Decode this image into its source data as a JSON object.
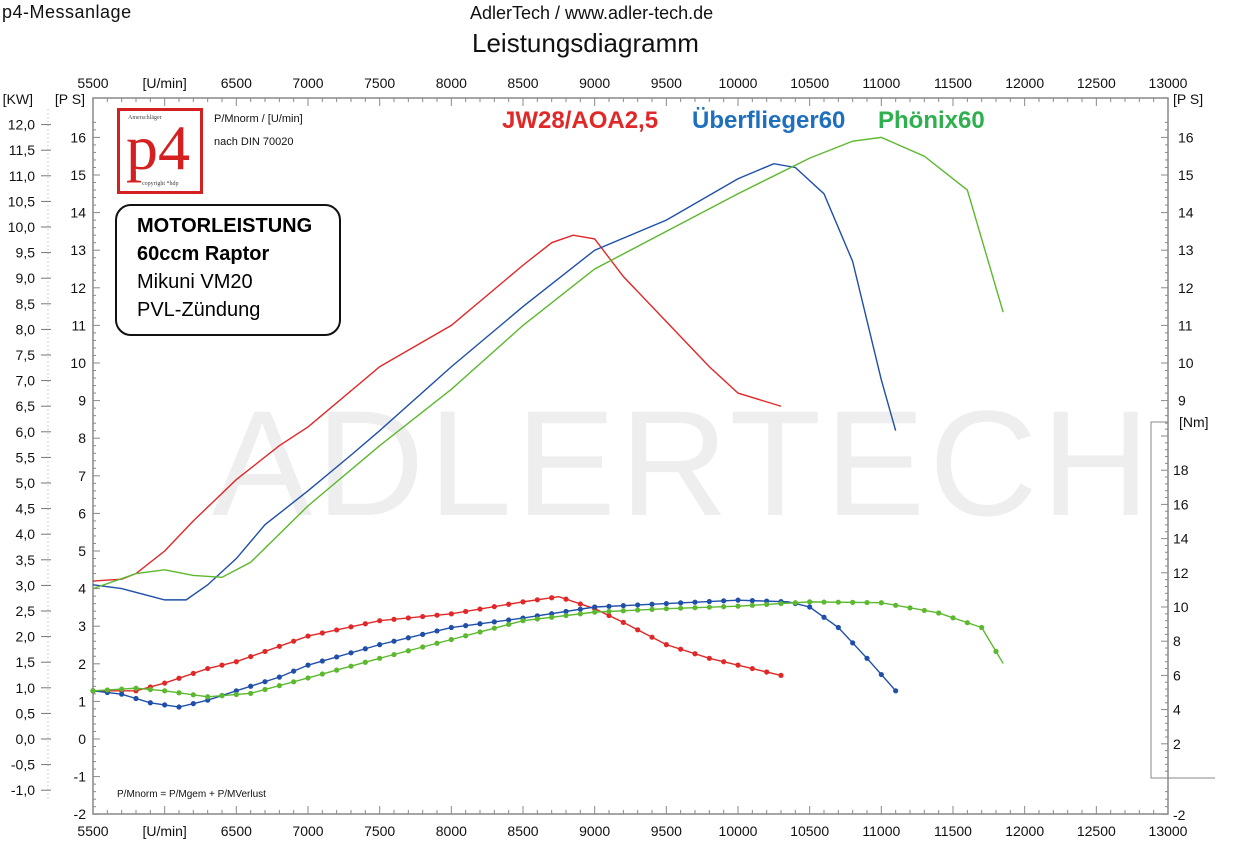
{
  "header": {
    "left": "p4-Messanlage",
    "center": "AdlerTech / www.adler-tech.de",
    "title": "Leistungsdiagramm"
  },
  "logo": {
    "text": "p4",
    "top": "Amerschläger",
    "bottom": "copyright *hdp",
    "color": "#d42020"
  },
  "norm": {
    "line1": "P/Mnorm / [U/min]",
    "line2": "nach DIN 70020"
  },
  "info_box": {
    "lines": [
      "MOTORLEISTUNG",
      "60ccm Raptor",
      "Mikuni VM20",
      "PVL-Zündung"
    ]
  },
  "footer_note": "P/Mnorm = P/Mgem + P/MVerlust",
  "watermark": "ADLERTECH",
  "chart_data": {
    "type": "line",
    "title": "Leistungsdiagramm",
    "x_unit_label": "[U/min]",
    "xlim": [
      5500,
      13000
    ],
    "x_ticks": [
      5500,
      6500,
      7000,
      7500,
      8000,
      8500,
      9000,
      9500,
      10000,
      10500,
      11000,
      11500,
      12000,
      12500,
      13000
    ],
    "axes": {
      "kw": {
        "label": "[KW]",
        "ylim": [
          -1.0,
          12.0
        ],
        "ticks": [
          "12,0",
          "11,5",
          "11,0",
          "10,5",
          "10,0",
          "9,5",
          "9,0",
          "8,5",
          "8,0",
          "7,5",
          "7,0",
          "6,5",
          "6,0",
          "5,5",
          "5,0",
          "4,5",
          "4,0",
          "3,5",
          "3,0",
          "2,5",
          "2,0",
          "1,5",
          "1,0",
          "0,5",
          "0,0",
          "-0,5",
          "-1,0"
        ]
      },
      "ps": {
        "label": "[P S]",
        "ylim": [
          -2,
          16
        ],
        "ticks": [
          16,
          15,
          14,
          13,
          12,
          11,
          10,
          9,
          8,
          7,
          6,
          5,
          4,
          3,
          2,
          1,
          0,
          -1,
          -2
        ]
      },
      "ps_right": {
        "label": "[P S]",
        "ticks": [
          16,
          15,
          14,
          13,
          12,
          11,
          10,
          9
        ]
      },
      "nm": {
        "label": "[Nm]",
        "ticks": [
          18,
          16,
          14,
          12,
          10,
          8,
          6,
          4,
          2
        ],
        "bottom_tick": "-2"
      }
    },
    "legend": [
      "JW28/AOA2,5",
      "Überflieger60",
      "Phönix60"
    ],
    "legend_placement": "top",
    "series": [
      {
        "name": "JW28/AOA2,5",
        "color": "#e02828",
        "power_ps": [
          [
            5500,
            4.2
          ],
          [
            5700,
            4.25
          ],
          [
            5800,
            4.4
          ],
          [
            6000,
            5.0
          ],
          [
            6200,
            5.8
          ],
          [
            6500,
            6.9
          ],
          [
            6800,
            7.8
          ],
          [
            7000,
            8.3
          ],
          [
            7500,
            9.9
          ],
          [
            8000,
            11.0
          ],
          [
            8500,
            12.6
          ],
          [
            8700,
            13.2
          ],
          [
            8850,
            13.4
          ],
          [
            9000,
            13.3
          ],
          [
            9200,
            12.3
          ],
          [
            9500,
            11.1
          ],
          [
            9800,
            9.9
          ],
          [
            10000,
            9.2
          ],
          [
            10300,
            8.85
          ]
        ],
        "torque_nm": [
          [
            5500,
            5.1
          ],
          [
            5800,
            5.1
          ],
          [
            6000,
            5.55
          ],
          [
            6300,
            6.4
          ],
          [
            6500,
            6.8
          ],
          [
            7000,
            8.3
          ],
          [
            7500,
            9.2
          ],
          [
            8000,
            9.6
          ],
          [
            8500,
            10.3
          ],
          [
            8750,
            10.6
          ],
          [
            9000,
            9.9
          ],
          [
            9200,
            9.1
          ],
          [
            9500,
            7.8
          ],
          [
            9800,
            7.0
          ],
          [
            10000,
            6.6
          ],
          [
            10300,
            6.0
          ]
        ]
      },
      {
        "name": "Überflieger60",
        "color": "#1f4fa8",
        "power_ps": [
          [
            5500,
            4.1
          ],
          [
            5700,
            4.0
          ],
          [
            6000,
            3.7
          ],
          [
            6150,
            3.7
          ],
          [
            6300,
            4.1
          ],
          [
            6500,
            4.8
          ],
          [
            6700,
            5.7
          ],
          [
            7000,
            6.6
          ],
          [
            7300,
            7.55
          ],
          [
            7500,
            8.2
          ],
          [
            8000,
            9.9
          ],
          [
            8500,
            11.5
          ],
          [
            9000,
            13.0
          ],
          [
            9500,
            13.8
          ],
          [
            10000,
            14.9
          ],
          [
            10250,
            15.3
          ],
          [
            10400,
            15.2
          ],
          [
            10600,
            14.5
          ],
          [
            10800,
            12.7
          ],
          [
            11000,
            9.55
          ],
          [
            11100,
            8.2
          ]
        ],
        "torque_nm": [
          [
            5500,
            5.1
          ],
          [
            5700,
            4.9
          ],
          [
            5900,
            4.4
          ],
          [
            6100,
            4.15
          ],
          [
            6300,
            4.55
          ],
          [
            6500,
            5.1
          ],
          [
            6800,
            5.9
          ],
          [
            7000,
            6.6
          ],
          [
            7500,
            7.8
          ],
          [
            8000,
            8.8
          ],
          [
            8500,
            9.35
          ],
          [
            9000,
            10.0
          ],
          [
            9500,
            10.2
          ],
          [
            10000,
            10.4
          ],
          [
            10350,
            10.3
          ],
          [
            10500,
            10.0
          ],
          [
            10700,
            8.8
          ],
          [
            10900,
            7.0
          ],
          [
            11100,
            5.1
          ]
        ]
      },
      {
        "name": "Phönix60",
        "color": "#5cb82e",
        "power_ps": [
          [
            5500,
            4.0
          ],
          [
            5800,
            4.4
          ],
          [
            6000,
            4.5
          ],
          [
            6200,
            4.35
          ],
          [
            6400,
            4.3
          ],
          [
            6600,
            4.7
          ],
          [
            7000,
            6.2
          ],
          [
            7500,
            7.8
          ],
          [
            8000,
            9.3
          ],
          [
            8500,
            11.0
          ],
          [
            9000,
            12.5
          ],
          [
            9500,
            13.5
          ],
          [
            10000,
            14.5
          ],
          [
            10500,
            15.45
          ],
          [
            10800,
            15.9
          ],
          [
            11000,
            16.0
          ],
          [
            11300,
            15.5
          ],
          [
            11600,
            14.6
          ],
          [
            11850,
            11.35
          ]
        ],
        "torque_nm": [
          [
            5500,
            5.1
          ],
          [
            5800,
            5.25
          ],
          [
            6000,
            5.1
          ],
          [
            6300,
            4.75
          ],
          [
            6600,
            4.95
          ],
          [
            7000,
            5.85
          ],
          [
            7500,
            7.0
          ],
          [
            8000,
            8.1
          ],
          [
            8500,
            9.2
          ],
          [
            9000,
            9.7
          ],
          [
            9500,
            9.9
          ],
          [
            10000,
            10.05
          ],
          [
            10500,
            10.3
          ],
          [
            11000,
            10.25
          ],
          [
            11400,
            9.65
          ],
          [
            11700,
            8.8
          ],
          [
            11850,
            6.7
          ]
        ]
      }
    ]
  }
}
